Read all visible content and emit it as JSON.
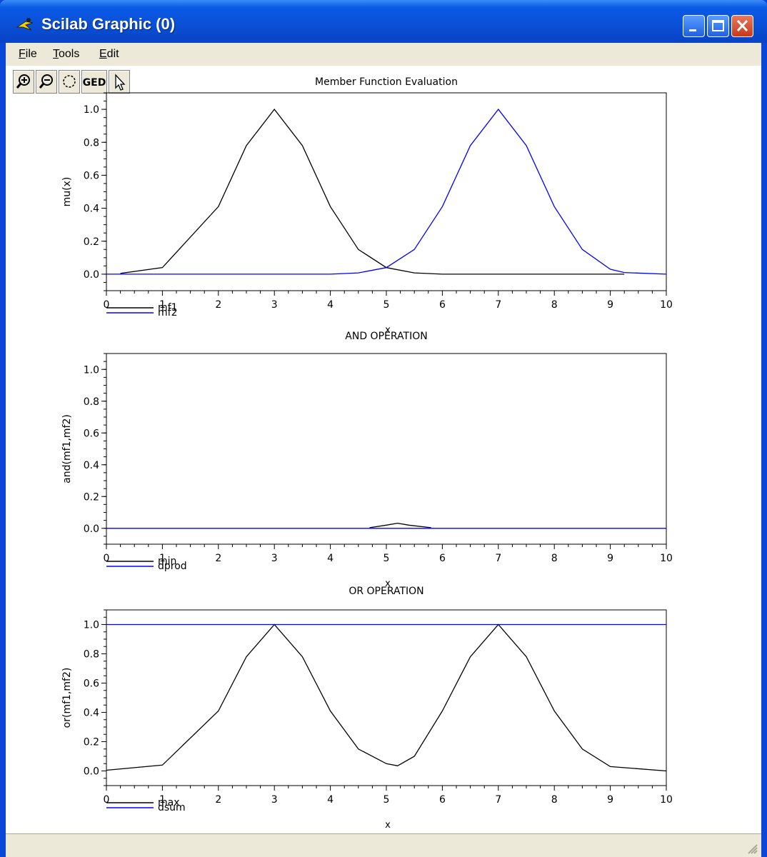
{
  "window": {
    "title": "Scilab Graphic (0)"
  },
  "menu": [
    {
      "label": "File",
      "accel": "F",
      "rest": "ile"
    },
    {
      "label": "Tools",
      "accel": "T",
      "rest": "ools"
    },
    {
      "label": "Edit",
      "accel": "E",
      "rest": "dit"
    }
  ],
  "toolbar": [
    "zoom-in-icon",
    "zoom-out-icon",
    "rotate-icon",
    "GED",
    "pointer-icon"
  ],
  "toolbar_labels": {
    "ged": "GED"
  },
  "colors": {
    "series_black": "#000000",
    "series_blue": "#0000ff",
    "titlebar": "#0a4fd6",
    "chrome": "#ece9d8"
  },
  "chart_data": [
    {
      "type": "line",
      "title": "Member Function Evaluation",
      "xlabel": "x",
      "ylabel": "mu(x)",
      "xlim": [
        0,
        10
      ],
      "ylim": [
        -0.1,
        1.1
      ],
      "xticks": [
        "0",
        "1",
        "2",
        "3",
        "4",
        "5",
        "6",
        "7",
        "8",
        "9",
        "10"
      ],
      "yticks": [
        "0.0",
        "0.2",
        "0.4",
        "0.6",
        "0.8",
        "1.0"
      ],
      "legend": [
        "mf1",
        "mf2"
      ],
      "series": [
        {
          "name": "mf1",
          "color": "#000000",
          "x": [
            0.25,
            1,
            2,
            2.5,
            3,
            3.5,
            4,
            4.5,
            5,
            5.5,
            6,
            6.5,
            7,
            8,
            9.25
          ],
          "y": [
            0.005,
            0.04,
            0.41,
            0.78,
            1.0,
            0.78,
            0.41,
            0.15,
            0.04,
            0.008,
            0.0,
            0.0,
            0.0,
            0.0,
            0.0
          ]
        },
        {
          "name": "mf2",
          "color": "#0000ff",
          "x": [
            0,
            4,
            4.5,
            5,
            5.5,
            6,
            6.5,
            7,
            7.5,
            8,
            8.5,
            9,
            9.25,
            10
          ],
          "y": [
            0.0,
            0.0,
            0.008,
            0.04,
            0.15,
            0.41,
            0.78,
            1.0,
            0.78,
            0.41,
            0.15,
            0.03,
            0.01,
            0.0
          ]
        }
      ]
    },
    {
      "type": "line",
      "title": "AND OPERATION",
      "xlabel": "x",
      "ylabel": "and(mf1,mf2)",
      "xlim": [
        0,
        10
      ],
      "ylim": [
        -0.1,
        1.1
      ],
      "xticks": [
        "0",
        "1",
        "2",
        "3",
        "4",
        "5",
        "6",
        "7",
        "8",
        "9",
        "10"
      ],
      "yticks": [
        "0.0",
        "0.2",
        "0.4",
        "0.6",
        "0.8",
        "1.0"
      ],
      "legend": [
        "min",
        "dprod"
      ],
      "series": [
        {
          "name": "min",
          "color": "#000000",
          "x": [
            4.7,
            5.0,
            5.2,
            5.4,
            5.8
          ],
          "y": [
            0.004,
            0.02,
            0.032,
            0.02,
            0.004
          ]
        },
        {
          "name": "dprod",
          "color": "#0000ff",
          "x": [
            0,
            10
          ],
          "y": [
            0.0,
            0.0
          ]
        }
      ]
    },
    {
      "type": "line",
      "title": "OR OPERATION",
      "xlabel": "x",
      "ylabel": "or(mf1,mf2)",
      "xlim": [
        0,
        10
      ],
      "ylim": [
        -0.1,
        1.1
      ],
      "xticks": [
        "0",
        "1",
        "2",
        "3",
        "4",
        "5",
        "6",
        "7",
        "8",
        "9",
        "10"
      ],
      "yticks": [
        "0.0",
        "0.2",
        "0.4",
        "0.6",
        "0.8",
        "1.0"
      ],
      "legend": [
        "max",
        "dsum"
      ],
      "series": [
        {
          "name": "max",
          "color": "#000000",
          "x": [
            0,
            1,
            2,
            2.5,
            3,
            3.5,
            4,
            4.5,
            5,
            5.2,
            5.5,
            6,
            6.5,
            7,
            7.5,
            8,
            8.5,
            9,
            10
          ],
          "y": [
            0.005,
            0.04,
            0.41,
            0.78,
            1.0,
            0.78,
            0.41,
            0.15,
            0.05,
            0.035,
            0.1,
            0.41,
            0.78,
            1.0,
            0.78,
            0.41,
            0.15,
            0.03,
            0.0
          ]
        },
        {
          "name": "dsum",
          "color": "#0000ff",
          "x": [
            0,
            10
          ],
          "y": [
            1.0,
            1.0
          ]
        }
      ]
    }
  ]
}
